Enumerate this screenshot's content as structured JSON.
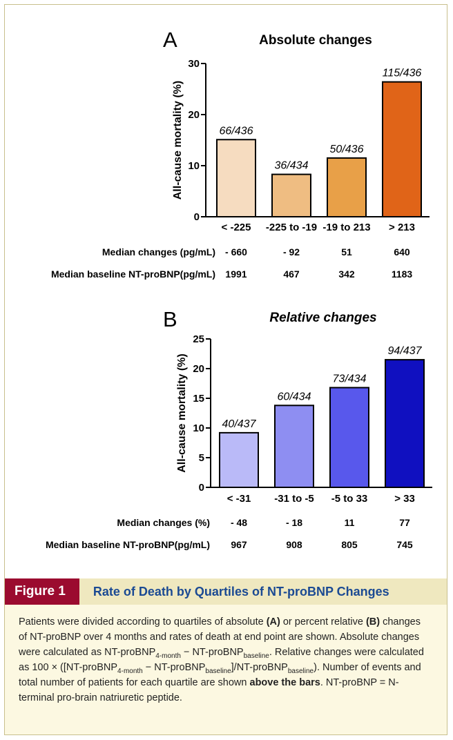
{
  "chart_data": [
    {
      "type": "bar",
      "panel": "A",
      "title": "Absolute changes",
      "ylabel": "All-cause mortality (%)",
      "ylim": [
        0,
        30
      ],
      "yticks": [
        "0",
        "10",
        "20",
        "30"
      ],
      "categories": [
        "< -225",
        "-225 to -19",
        "-19 to 213",
        "> 213"
      ],
      "values": [
        15.1,
        8.3,
        11.5,
        26.4
      ],
      "bar_labels": [
        "66/436",
        "36/434",
        "50/436",
        "115/436"
      ],
      "colors": [
        "#f6dcc0",
        "#efbd82",
        "#e8a048",
        "#e06418"
      ],
      "table": [
        {
          "label": "Median changes (pg/mL)",
          "values": [
            "- 660",
            "- 92",
            "51",
            "640"
          ]
        },
        {
          "label": "Median baseline NT-proBNP(pg/mL)",
          "values": [
            "1991",
            "467",
            "342",
            "1183"
          ]
        }
      ]
    },
    {
      "type": "bar",
      "panel": "B",
      "title": "Relative changes",
      "ylabel": "All-cause mortality (%)",
      "ylim": [
        0,
        25
      ],
      "yticks": [
        "0",
        "5",
        "10",
        "15",
        "20",
        "25"
      ],
      "categories": [
        "< -31",
        "-31 to -5",
        "-5 to 33",
        "> 33"
      ],
      "values": [
        9.2,
        13.8,
        16.8,
        21.5
      ],
      "bar_labels": [
        "40/437",
        "60/434",
        "73/434",
        "94/437"
      ],
      "colors": [
        "#babaf8",
        "#8e8ef2",
        "#5858ec",
        "#1010c0"
      ],
      "table": [
        {
          "label": "Median changes (%)",
          "values": [
            "- 48",
            "- 18",
            "11",
            "77"
          ]
        },
        {
          "label": "Median baseline NT-proBNP(pg/mL)",
          "values": [
            "967",
            "908",
            "805",
            "745"
          ]
        }
      ]
    }
  ],
  "figure": {
    "number": "Figure 1",
    "title": "Rate of Death by Quartiles of NT-proBNP Changes",
    "caption": {
      "t1": "Patients were divided according to quartiles of absolute ",
      "b1": "(A)",
      "t2": " or percent relative ",
      "b2": "(B)",
      "t3": " changes of NT-proBNP over 4 months and rates of death at end point are shown. Absolute changes were calculated as NT-proBNP",
      "s1": "4-month",
      "t4": " − NT-proBNP",
      "s2": "baseline",
      "t5": ". Relative changes were calculated as 100 × ([NT-proBNP",
      "s3": "4-month",
      "t6": " − NT-proBNP",
      "s4": "baseline",
      "t7": "]/NT-proBNP",
      "s5": "baseline",
      "t8": "). Number of events and total number of patients for each quartile are shown ",
      "b3": "above the bars",
      "t9": ". NT-proBNP = N-terminal pro-brain natriuretic peptide."
    }
  }
}
